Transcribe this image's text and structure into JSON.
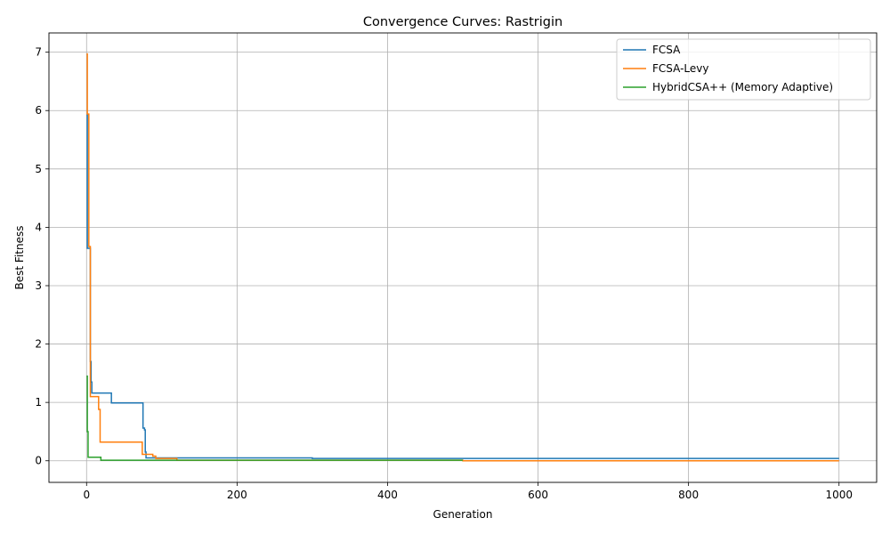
{
  "chart_data": {
    "type": "line",
    "title": "Convergence Curves: Rastrigin",
    "xlabel": "Generation",
    "ylabel": "Best Fitness",
    "xlim": [
      -50,
      1050
    ],
    "ylim": [
      -0.37,
      7.33
    ],
    "xticks": [
      0,
      200,
      400,
      600,
      800,
      1000
    ],
    "yticks": [
      0,
      1,
      2,
      3,
      4,
      5,
      6,
      7
    ],
    "grid": true,
    "legend_position": "top-right",
    "series": [
      {
        "name": "FCSA",
        "color": "#1f77b4",
        "x": [
          0,
          1,
          1,
          5,
          5,
          6,
          6,
          7,
          7,
          33,
          33,
          75,
          75,
          77,
          77,
          78,
          78,
          79,
          79,
          120,
          120,
          300,
          300,
          1000
        ],
        "y": [
          5.93,
          5.93,
          3.64,
          3.64,
          1.7,
          1.7,
          1.35,
          1.35,
          1.16,
          1.16,
          0.99,
          0.99,
          0.56,
          0.56,
          0.53,
          0.53,
          0.15,
          0.15,
          0.05,
          0.05,
          0.05,
          0.05,
          0.04,
          0.04
        ]
      },
      {
        "name": "FCSA-Levy",
        "color": "#ff7f0e",
        "x": [
          0,
          1,
          1,
          3,
          3,
          5,
          5,
          16,
          16,
          18,
          18,
          74,
          74,
          88,
          88,
          92,
          92,
          120,
          120,
          500,
          500,
          1000
        ],
        "y": [
          6.97,
          6.97,
          5.94,
          5.94,
          3.67,
          3.67,
          1.1,
          1.1,
          0.88,
          0.88,
          0.32,
          0.32,
          0.11,
          0.11,
          0.08,
          0.08,
          0.04,
          0.04,
          0.01,
          0.01,
          0.0,
          0.0
        ]
      },
      {
        "name": "HybridCSA++ (Memory Adaptive)",
        "color": "#2ca02c",
        "x": [
          0,
          1,
          1,
          2,
          2,
          19,
          19,
          500
        ],
        "y": [
          1.45,
          1.45,
          0.5,
          0.5,
          0.06,
          0.06,
          0.01,
          0.01
        ]
      }
    ]
  }
}
